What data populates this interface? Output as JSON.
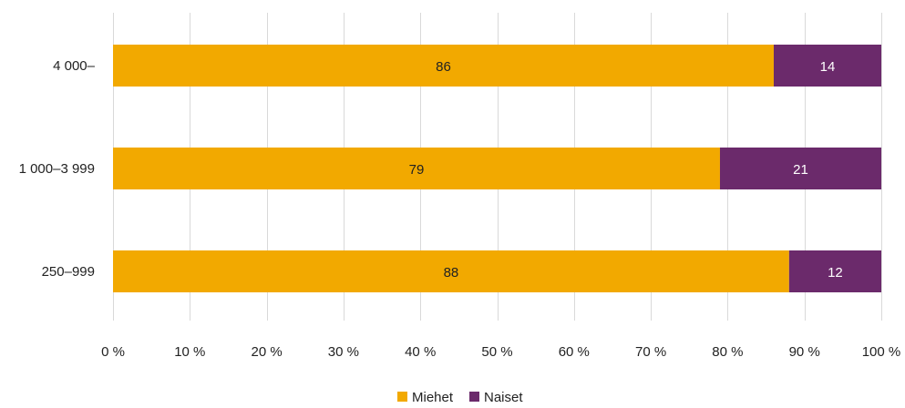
{
  "chart_data": {
    "type": "bar",
    "orientation": "horizontal",
    "stacked": true,
    "categories": [
      "4 000–",
      "1 000–3 999",
      "250–999"
    ],
    "series": [
      {
        "name": "Miehet",
        "values": [
          86,
          79,
          88
        ],
        "color": "#f2a900",
        "label_color": "#222222"
      },
      {
        "name": "Naiset",
        "values": [
          14,
          21,
          12
        ],
        "color": "#6b2a6b",
        "label_color": "#ffffff"
      }
    ],
    "xlim": [
      0,
      100
    ],
    "xticks": [
      0,
      10,
      20,
      30,
      40,
      50,
      60,
      70,
      80,
      90,
      100
    ],
    "xtick_labels": [
      "0 %",
      "10 %",
      "20 %",
      "30 %",
      "40 %",
      "50 %",
      "60 %",
      "70 %",
      "80 %",
      "90 %",
      "100 %"
    ],
    "grid": true,
    "legend_position": "bottom-center"
  }
}
